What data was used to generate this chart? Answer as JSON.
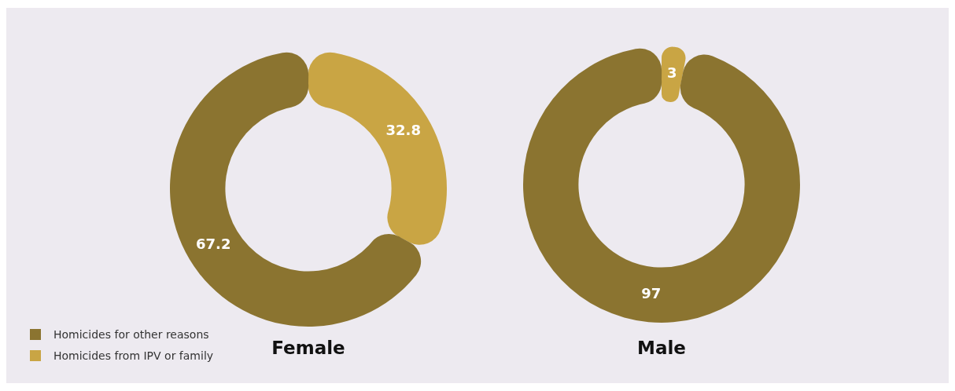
{
  "chart_data": [
    {
      "type": "donut",
      "title": "Female",
      "categories": [
        "Homicides from IPV or family",
        "Homicides for other reasons"
      ],
      "values": [
        32.8,
        67.2
      ],
      "colors": [
        "#c9a544",
        "#8b7430"
      ],
      "data_labels": true,
      "legend": "bottom left"
    },
    {
      "type": "donut",
      "title": "Male",
      "categories": [
        null,
        null
      ],
      "values": [
        3,
        97
      ],
      "colors": [
        "#c9a544",
        "#8b7430"
      ],
      "data_labels": true,
      "legend": false
    }
  ]
}
